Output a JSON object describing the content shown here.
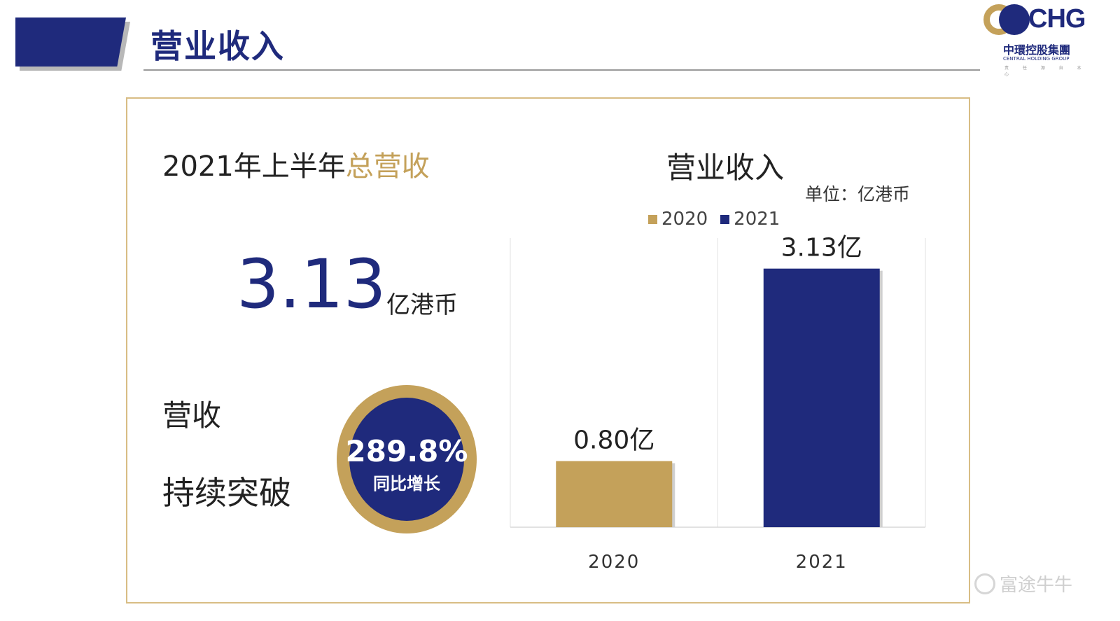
{
  "header": {
    "title": "营业收入",
    "logo": {
      "mark": "CHG",
      "name_cn": "中環控股集團",
      "name_en": "CENTRAL HOLDING GROUP",
      "tagline": "责 任 源 自 本 心"
    }
  },
  "summary": {
    "headline_prefix": "2021年上半年",
    "headline_accent": "总营收",
    "value": "3.13",
    "unit": "亿港币",
    "label_1": "营收",
    "label_2": "持续突破",
    "badge_value": "289.8%",
    "badge_label": "同比增长"
  },
  "chart_unit": "单位：亿港币",
  "watermark": "富途牛牛",
  "colors": {
    "navy": "#1f2a7c",
    "gold": "#c4a15a"
  },
  "chart_data": {
    "type": "bar",
    "title": "营业收入",
    "categories": [
      "2020",
      "2021"
    ],
    "values": [
      0.8,
      3.13
    ],
    "data_labels": [
      "0.80亿",
      "3.13亿"
    ],
    "legend": [
      "2020",
      "2021"
    ],
    "colors": [
      "#c4a15a",
      "#1f2a7c"
    ],
    "ylim": [
      0,
      3.5
    ],
    "grid": false,
    "legend_position": "top"
  }
}
